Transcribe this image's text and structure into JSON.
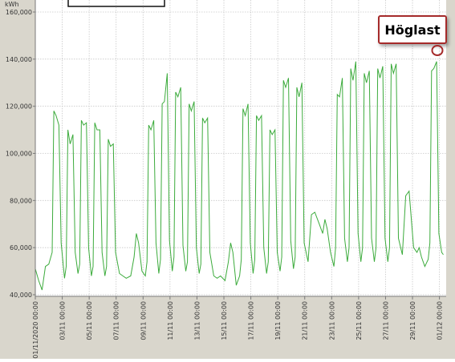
{
  "chart_data": {
    "type": "line",
    "ylabel": "kWh",
    "ylim": [
      40000,
      160000
    ],
    "yticks": [
      40000,
      60000,
      80000,
      100000,
      120000,
      140000,
      160000
    ],
    "ytick_labels": [
      "40,000",
      "60,000",
      "80,000",
      "100,000",
      "120,000",
      "140,000",
      "160,000"
    ],
    "xlim": [
      "2020-11-01 00:00",
      "2020-12-01 12:00"
    ],
    "xticks": [
      "2020-11-01",
      "2020-11-03",
      "2020-11-05",
      "2020-11-07",
      "2020-11-09",
      "2020-11-11",
      "2020-11-13",
      "2020-11-15",
      "2020-11-17",
      "2020-11-19",
      "2020-11-21",
      "2020-11-23",
      "2020-11-25",
      "2020-11-27",
      "2020-11-29",
      "2020-12-01"
    ],
    "xtick_labels": [
      "01/11/2020 00:00",
      "03/11 00:00",
      "05/11 00:00",
      "07/11 00:00",
      "09/11 00:00",
      "11/11 00:00",
      "13/11 00:00",
      "15/11 00:00",
      "17/11 00:00",
      "19/11 00:00",
      "21/11 00:00",
      "23/11 00:00",
      "25/11 00:00",
      "27/11 00:00",
      "29/11 00:00",
      "01/12 00:00"
    ],
    "grid": true,
    "line_color": "#3cab3c",
    "series": [
      {
        "x": [
          "2020-11-01 00:00",
          "2020-11-01 06:00",
          "2020-11-01 12:00",
          "2020-11-01 18:00",
          "2020-11-02 00:00",
          "2020-11-02 06:00",
          "2020-11-02 09:00",
          "2020-11-02 13:00",
          "2020-11-02 18:00",
          "2020-11-02 22:00",
          "2020-11-03 04:00",
          "2020-11-03 07:00",
          "2020-11-03 10:00",
          "2020-11-03 14:00",
          "2020-11-03 19:00",
          "2020-11-03 23:00",
          "2020-11-04 04:00",
          "2020-11-04 07:00",
          "2020-11-04 10:00",
          "2020-11-04 14:00",
          "2020-11-04 19:00",
          "2020-11-04 23:00",
          "2020-11-05 04:00",
          "2020-11-05 07:00",
          "2020-11-05 10:00",
          "2020-11-05 14:00",
          "2020-11-05 19:00",
          "2020-11-05 23:00",
          "2020-11-06 04:00",
          "2020-11-06 07:00",
          "2020-11-06 10:00",
          "2020-11-06 14:00",
          "2020-11-06 19:00",
          "2020-11-06 23:00",
          "2020-11-07 06:00",
          "2020-11-07 12:00",
          "2020-11-07 18:00",
          "2020-11-08 02:00",
          "2020-11-08 08:00",
          "2020-11-08 12:00",
          "2020-11-08 16:00",
          "2020-11-08 22:00",
          "2020-11-09 04:00",
          "2020-11-09 07:00",
          "2020-11-09 10:00",
          "2020-11-09 14:00",
          "2020-11-09 19:00",
          "2020-11-09 23:00",
          "2020-11-10 04:00",
          "2020-11-10 07:00",
          "2020-11-10 10:00",
          "2020-11-10 14:00",
          "2020-11-10 19:00",
          "2020-11-10 23:00",
          "2020-11-11 04:00",
          "2020-11-11 07:00",
          "2020-11-11 10:00",
          "2020-11-11 14:00",
          "2020-11-11 19:00",
          "2020-11-11 23:00",
          "2020-11-12 04:00",
          "2020-11-12 07:00",
          "2020-11-12 10:00",
          "2020-11-12 14:00",
          "2020-11-12 19:00",
          "2020-11-12 23:00",
          "2020-11-13 04:00",
          "2020-11-13 07:00",
          "2020-11-13 10:00",
          "2020-11-13 14:00",
          "2020-11-13 19:00",
          "2020-11-13 23:00",
          "2020-11-14 06:00",
          "2020-11-14 12:00",
          "2020-11-14 18:00",
          "2020-11-15 02:00",
          "2020-11-15 08:00",
          "2020-11-15 12:00",
          "2020-11-15 16:00",
          "2020-11-15 22:00",
          "2020-11-16 04:00",
          "2020-11-16 07:00",
          "2020-11-16 10:00",
          "2020-11-16 14:00",
          "2020-11-16 19:00",
          "2020-11-16 23:00",
          "2020-11-17 04:00",
          "2020-11-17 07:00",
          "2020-11-17 10:00",
          "2020-11-17 14:00",
          "2020-11-17 19:00",
          "2020-11-17 23:00",
          "2020-11-18 04:00",
          "2020-11-18 07:00",
          "2020-11-18 10:00",
          "2020-11-18 14:00",
          "2020-11-18 19:00",
          "2020-11-18 23:00",
          "2020-11-19 04:00",
          "2020-11-19 07:00",
          "2020-11-19 10:00",
          "2020-11-19 14:00",
          "2020-11-19 19:00",
          "2020-11-19 23:00",
          "2020-11-20 04:00",
          "2020-11-20 07:00",
          "2020-11-20 10:00",
          "2020-11-20 14:00",
          "2020-11-20 19:00",
          "2020-11-20 23:00",
          "2020-11-21 06:00",
          "2020-11-21 12:00",
          "2020-11-21 18:00",
          "2020-11-22 02:00",
          "2020-11-22 08:00",
          "2020-11-22 12:00",
          "2020-11-22 16:00",
          "2020-11-22 22:00",
          "2020-11-23 04:00",
          "2020-11-23 07:00",
          "2020-11-23 10:00",
          "2020-11-23 14:00",
          "2020-11-23 19:00",
          "2020-11-23 23:00",
          "2020-11-24 04:00",
          "2020-11-24 07:00",
          "2020-11-24 10:00",
          "2020-11-24 14:00",
          "2020-11-24 19:00",
          "2020-11-24 23:00",
          "2020-11-25 04:00",
          "2020-11-25 07:00",
          "2020-11-25 10:00",
          "2020-11-25 14:00",
          "2020-11-25 19:00",
          "2020-11-25 23:00",
          "2020-11-26 04:00",
          "2020-11-26 07:00",
          "2020-11-26 10:00",
          "2020-11-26 14:00",
          "2020-11-26 19:00",
          "2020-11-26 23:00",
          "2020-11-27 04:00",
          "2020-11-27 07:00",
          "2020-11-27 10:00",
          "2020-11-27 14:00",
          "2020-11-27 19:00",
          "2020-11-27 23:00",
          "2020-11-28 06:00",
          "2020-11-28 12:00",
          "2020-11-28 18:00",
          "2020-11-29 02:00",
          "2020-11-29 08:00",
          "2020-11-29 12:00",
          "2020-11-29 16:00",
          "2020-11-29 22:00",
          "2020-11-30 04:00",
          "2020-11-30 07:00",
          "2020-11-30 10:00",
          "2020-11-30 14:00",
          "2020-11-30 19:00",
          "2020-11-30 23:00",
          "2020-12-01 04:00",
          "2020-12-01 07:00"
        ],
        "y": [
          51000,
          46000,
          42000,
          52000,
          53000,
          58000,
          118000,
          116000,
          112000,
          62000,
          47000,
          52000,
          110000,
          104000,
          108000,
          58000,
          49000,
          53000,
          114000,
          112000,
          113000,
          60000,
          48000,
          52000,
          113000,
          110000,
          110000,
          58000,
          48000,
          52000,
          106000,
          103000,
          104000,
          58000,
          49000,
          48000,
          47000,
          48000,
          56000,
          66000,
          62000,
          50000,
          48000,
          54000,
          112000,
          110000,
          114000,
          62000,
          49000,
          55000,
          121000,
          122000,
          134000,
          63000,
          50000,
          56000,
          126000,
          124000,
          128000,
          61000,
          50000,
          54000,
          121000,
          118000,
          122000,
          60000,
          49000,
          53000,
          115000,
          113000,
          115000,
          58000,
          48000,
          47000,
          48000,
          46000,
          54000,
          62000,
          58000,
          44000,
          48000,
          55000,
          119000,
          116000,
          121000,
          62000,
          49000,
          55000,
          116000,
          114000,
          116000,
          60000,
          49000,
          54000,
          110000,
          108000,
          110000,
          58000,
          50000,
          56000,
          131000,
          128000,
          132000,
          63000,
          51000,
          56000,
          128000,
          124000,
          130000,
          62000,
          54000,
          74000,
          75000,
          70000,
          66000,
          72000,
          68000,
          58000,
          52000,
          60000,
          125000,
          124000,
          132000,
          64000,
          54000,
          60000,
          136000,
          131000,
          139000,
          66000,
          54000,
          60000,
          134000,
          130000,
          135000,
          64000,
          54000,
          60000,
          136000,
          132000,
          137000,
          64000,
          54000,
          60000,
          138000,
          134000,
          138000,
          64000,
          57000,
          82000,
          84000,
          60000,
          58000,
          60000,
          56000,
          52000,
          55000,
          62000,
          135000,
          136000,
          139000,
          66000,
          58000,
          57000
        ]
      }
    ]
  },
  "annotation": {
    "label": "Höglast"
  }
}
